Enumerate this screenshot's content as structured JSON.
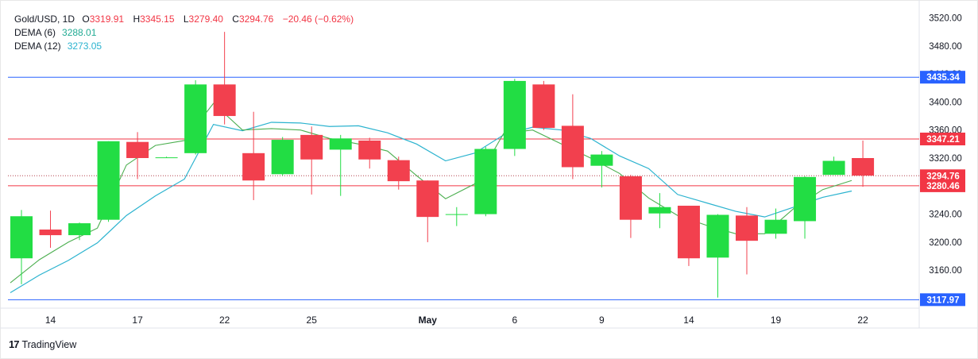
{
  "legend": {
    "symbol": "Gold/USD, 1D",
    "open_label": "O",
    "open": "3319.91",
    "high_label": "H",
    "high": "3345.15",
    "low_label": "L",
    "low": "3279.40",
    "close_label": "C",
    "close": "3294.76",
    "change": "−20.46 (−0.62%)",
    "dema6_label": "DEMA (6)",
    "dema6": "3288.01",
    "dema12_label": "DEMA (12)",
    "dema12": "3273.05"
  },
  "brand": {
    "logo": "17",
    "name": "TradingView"
  },
  "colors": {
    "up": "#22dd44",
    "down": "#f2404e",
    "dema6": "#4caf50",
    "dema12": "#2bb3cf",
    "resistance": "#f23645",
    "support": "#2962ff"
  },
  "chart_data": {
    "type": "candlestick",
    "x_tick_labels": [
      "14",
      "17",
      "22",
      "25",
      "May",
      "6",
      "9",
      "14",
      "19",
      "22"
    ],
    "y_tick_labels": [
      "3160.00",
      "3200.00",
      "3240.00",
      "3280.00",
      "3320.00",
      "3360.00",
      "3400.00",
      "3440.00",
      "3480.00",
      "3520.00"
    ],
    "ylim": [
      3107,
      3533
    ],
    "candles": [
      {
        "o": 3177,
        "h": 3246,
        "l": 3140,
        "c": 3237
      },
      {
        "o": 3218,
        "h": 3245,
        "l": 3192,
        "c": 3210
      },
      {
        "o": 3210,
        "h": 3228,
        "l": 3203,
        "c": 3227
      },
      {
        "o": 3232,
        "h": 3344,
        "l": 3229,
        "c": 3344
      },
      {
        "o": 3343,
        "h": 3357,
        "l": 3290,
        "c": 3320
      },
      {
        "o": 3320,
        "h": 3322,
        "l": 3320,
        "c": 3321
      },
      {
        "o": 3327,
        "h": 3431,
        "l": 3325,
        "c": 3425
      },
      {
        "o": 3425,
        "h": 3500,
        "l": 3368,
        "c": 3380
      },
      {
        "o": 3327,
        "h": 3386,
        "l": 3260,
        "c": 3288
      },
      {
        "o": 3297,
        "h": 3350,
        "l": 3295,
        "c": 3346
      },
      {
        "o": 3353,
        "h": 3365,
        "l": 3268,
        "c": 3318
      },
      {
        "o": 3332,
        "h": 3353,
        "l": 3266,
        "c": 3348
      },
      {
        "o": 3345,
        "h": 3349,
        "l": 3305,
        "c": 3318
      },
      {
        "o": 3317,
        "h": 3322,
        "l": 3275,
        "c": 3287
      },
      {
        "o": 3288,
        "h": 3288,
        "l": 3200,
        "c": 3236
      },
      {
        "o": 3240,
        "h": 3250,
        "l": 3223,
        "c": 3240
      },
      {
        "o": 3240,
        "h": 3336,
        "l": 3237,
        "c": 3333
      },
      {
        "o": 3333,
        "h": 3433,
        "l": 3323,
        "c": 3430
      },
      {
        "o": 3425,
        "h": 3430,
        "l": 3360,
        "c": 3363
      },
      {
        "o": 3366,
        "h": 3411,
        "l": 3290,
        "c": 3307
      },
      {
        "o": 3309,
        "h": 3330,
        "l": 3278,
        "c": 3325
      },
      {
        "o": 3294,
        "h": 3296,
        "l": 3206,
        "c": 3232
      },
      {
        "o": 3241,
        "h": 3270,
        "l": 3220,
        "c": 3250
      },
      {
        "o": 3252,
        "h": 3252,
        "l": 3166,
        "c": 3177
      },
      {
        "o": 3178,
        "h": 3240,
        "l": 3121,
        "c": 3239
      },
      {
        "o": 3238,
        "h": 3250,
        "l": 3154,
        "c": 3202
      },
      {
        "o": 3212,
        "h": 3248,
        "l": 3205,
        "c": 3232
      },
      {
        "o": 3230,
        "h": 3294,
        "l": 3205,
        "c": 3293
      },
      {
        "o": 3296,
        "h": 3322,
        "l": 3296,
        "c": 3316
      },
      {
        "o": 3320,
        "h": 3345,
        "l": 3279,
        "c": 3295
      }
    ],
    "series": [
      {
        "name": "DEMA (6)",
        "values": [
          3142,
          3175,
          3200,
          3220,
          3310,
          3338,
          3345,
          3398,
          3360,
          3362,
          3360,
          3348,
          3340,
          3330,
          3295,
          3262,
          3283,
          3355,
          3360,
          3340,
          3320,
          3298,
          3263,
          3238,
          3224,
          3212,
          3212,
          3248,
          3275,
          3288
        ]
      },
      {
        "name": "DEMA (12)",
        "values": [
          3128,
          3153,
          3174,
          3199,
          3238,
          3266,
          3290,
          3368,
          3359,
          3371,
          3370,
          3365,
          3366,
          3356,
          3340,
          3316,
          3327,
          3353,
          3364,
          3360,
          3348,
          3323,
          3305,
          3268,
          3256,
          3244,
          3236,
          3250,
          3264,
          3273
        ]
      }
    ],
    "horizontal_lines": [
      {
        "value": 3435.34,
        "label": "3435.34",
        "kind": "support"
      },
      {
        "value": 3347.21,
        "label": "3347.21",
        "kind": "resistance"
      },
      {
        "value": 3280.46,
        "label": "3280.46",
        "kind": "resistance"
      },
      {
        "value": 3117.97,
        "label": "3117.97",
        "kind": "support"
      }
    ],
    "last_price": {
      "value": 3294.76,
      "label": "3294.76"
    },
    "grid": false
  }
}
